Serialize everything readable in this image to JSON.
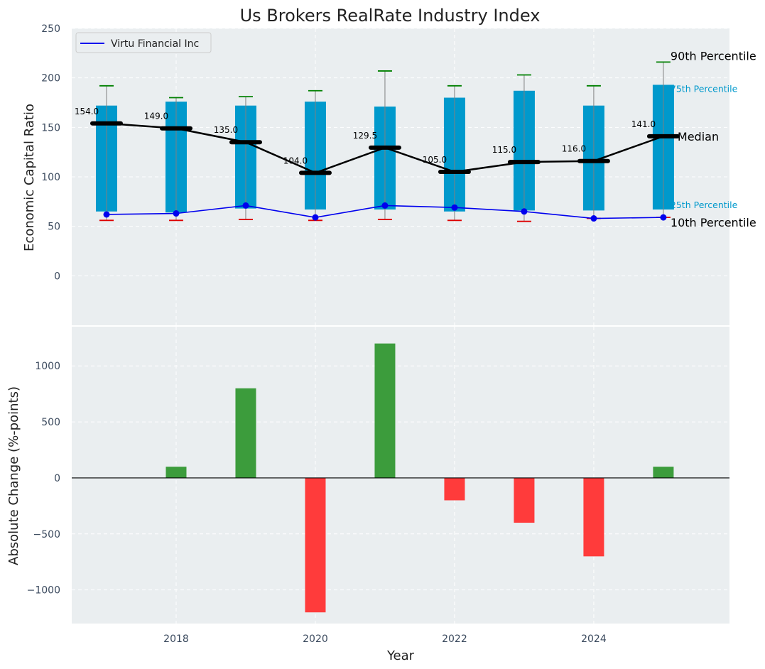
{
  "chart_data": [
    {
      "type": "box",
      "title": "Us Brokers RealRate Industry Index",
      "ylabel": "Economic Capital Ratio",
      "ylim": [
        -50,
        250
      ],
      "yticks": [
        0,
        50,
        100,
        150,
        200,
        250
      ],
      "grid": true,
      "legend": {
        "position": "top-left",
        "entries": [
          "Virtu Financial Inc"
        ]
      },
      "x": [
        2017,
        2018,
        2019,
        2020,
        2021,
        2022,
        2023,
        2024,
        2025
      ],
      "p10": [
        56,
        56,
        57,
        56,
        57,
        56,
        55,
        58,
        59
      ],
      "p25": [
        65,
        64,
        68,
        67,
        67,
        65,
        66,
        66,
        67
      ],
      "median": [
        154.0,
        149.0,
        135.0,
        104.0,
        129.5,
        105.0,
        115.0,
        116.0,
        141.0
      ],
      "median_labels": [
        "154.0",
        "149.0",
        "135.0",
        "104.0",
        "129.5",
        "105.0",
        "115.0",
        "116.0",
        "141.0"
      ],
      "p75": [
        172,
        176,
        172,
        176,
        171,
        180,
        187,
        172,
        193
      ],
      "p90": [
        192,
        180,
        181,
        187,
        207,
        192,
        203,
        192,
        216
      ],
      "series": [
        {
          "name": "Virtu Financial Inc",
          "values": [
            62,
            63,
            71,
            59,
            71,
            69,
            65,
            58,
            59
          ]
        }
      ],
      "annotations": {
        "p90": "90th Percentile",
        "p75": "75th Percentile",
        "median": "Median",
        "p25": "25th Percentile",
        "p10": "10th Percentile"
      },
      "colors": {
        "box": "#0099cc",
        "median": "#000000",
        "company": "#0000ee",
        "p90_cap": "#008000",
        "p10_cap": "#dd0000",
        "panel_bg": "#eaeef0"
      }
    },
    {
      "type": "bar",
      "xlabel": "Year",
      "ylabel": "Absolute Change (%-points)",
      "ylim": [
        -1300,
        1350
      ],
      "yticks": [
        -1000,
        -500,
        0,
        500,
        1000
      ],
      "yticklabels": [
        "−1000",
        "−500",
        "0",
        "500",
        "1000"
      ],
      "xlim": [
        2016.5,
        2025.95
      ],
      "xticks": [
        2018,
        2020,
        2022,
        2024
      ],
      "x": [
        2018,
        2019,
        2020,
        2021,
        2022,
        2023,
        2024,
        2025
      ],
      "values": [
        100,
        800,
        -1200,
        1200,
        -200,
        -400,
        -700,
        100
      ],
      "colors": {
        "positive": "#3c9c3c",
        "negative": "#ff3b3b"
      }
    }
  ]
}
